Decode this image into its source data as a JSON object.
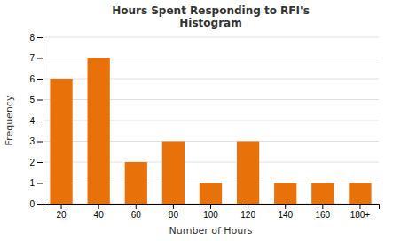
{
  "chart_data": {
    "type": "bar",
    "title": "Hours Spent Responding to RFI's\nHistogram",
    "x_label": "Number of Hours",
    "y_label": "Frequency",
    "categories": [
      "20",
      "40",
      "60",
      "80",
      "100",
      "120",
      "140",
      "160",
      "180+"
    ],
    "values": [
      6,
      7,
      2,
      3,
      1,
      3,
      1,
      1,
      1
    ],
    "color": "#E8710A",
    "ylim": [
      0,
      8
    ],
    "yticks": [
      0,
      1,
      2,
      3,
      4,
      5,
      6,
      7,
      8
    ],
    "grid": true
  }
}
